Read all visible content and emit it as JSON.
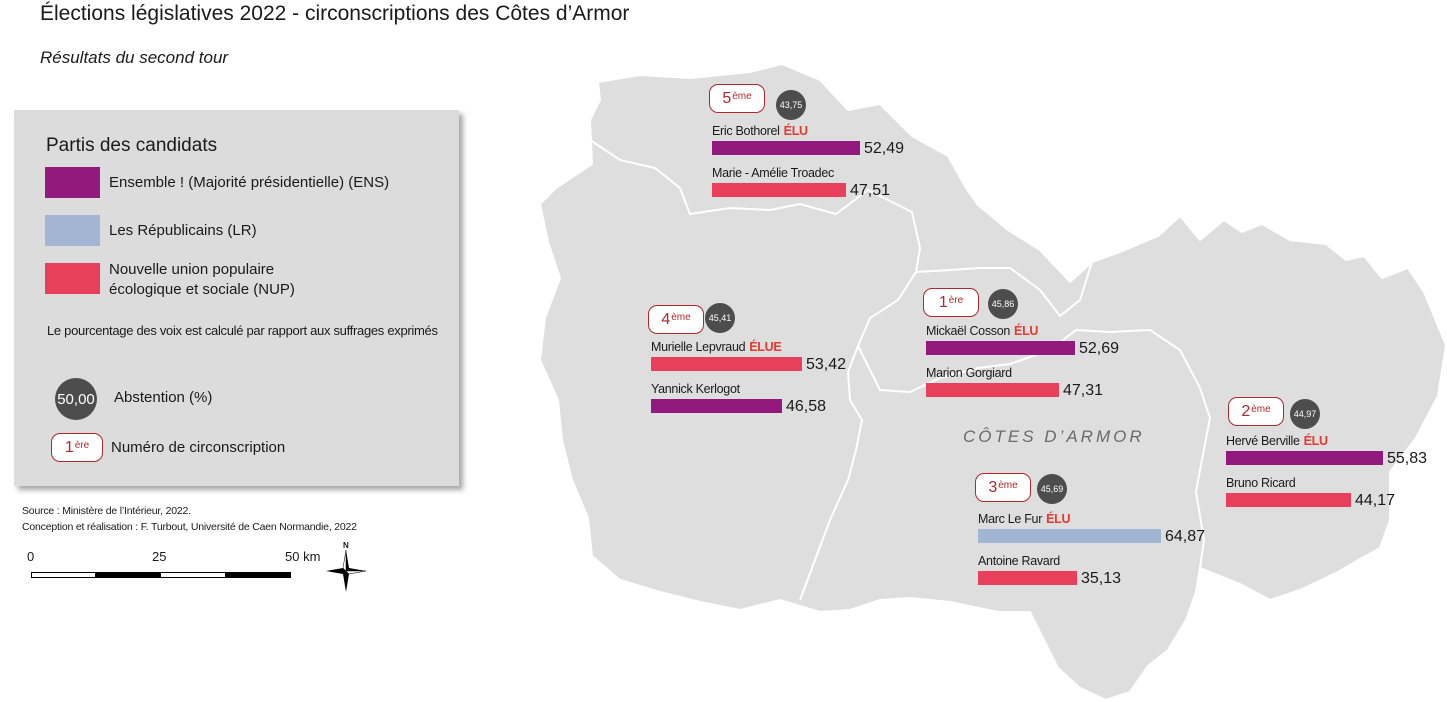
{
  "title": "Élections législatives 2022 - circonscriptions des Côtes d’Armor",
  "subtitle": "Résultats du second tour",
  "colors": {
    "ENS": "#921a7f",
    "LR": "#a2b6d3",
    "NUP": "#e8405a",
    "abstention_bubble": "#4d4d4d",
    "badge_border": "#b0282d",
    "elu_text": "#e23a2c",
    "territory_fill": "#dedede"
  },
  "legend": {
    "heading": "Partis des candidats",
    "parties": [
      {
        "code": "ENS",
        "label": "Ensemble ! (Majorité présidentielle) (ENS)"
      },
      {
        "code": "LR",
        "label": "Les Républicains (LR)"
      },
      {
        "code": "NUP",
        "label_line1": "Nouvelle union populaire",
        "label_line2": "écologique et sociale (NUP)"
      }
    ],
    "note": "Le pourcentage des voix est calculé par rapport aux suffrages exprimés",
    "abstention_example": "50,00",
    "abstention_label": "Abstention (%)",
    "badge_example_num": "1",
    "badge_example_sup": "ère",
    "badge_label": "Numéro de circonscription"
  },
  "credits": {
    "source": "Source : Ministère de l’Intérieur, 2022.",
    "design": "Conception et réalisation : F. Turbout, Université de Caen Normandie, 2022"
  },
  "scale": {
    "labels": [
      "0",
      "25",
      "50 km"
    ],
    "north": "N"
  },
  "map": {
    "department": "CÔTES D’ARMOR",
    "circonscriptions": [
      {
        "num": "5",
        "sup": "ème",
        "abstention": "43,75",
        "abstention_value": 43.75,
        "candidates": [
          {
            "name": "Eric Bothorel",
            "elu": "ÉLU",
            "party": "ENS",
            "value": 52.49,
            "label": "52,49"
          },
          {
            "name": "Marie - Amélie Troadec",
            "elu": "",
            "party": "NUP",
            "value": 47.51,
            "label": "47,51"
          }
        ]
      },
      {
        "num": "4",
        "sup": "ème",
        "abstention": "45,41",
        "abstention_value": 45.41,
        "candidates": [
          {
            "name": "Murielle Lepvraud",
            "elu": "ÉLUE",
            "party": "NUP",
            "value": 53.42,
            "label": "53,42"
          },
          {
            "name": "Yannick Kerlogot",
            "elu": "",
            "party": "ENS",
            "value": 46.58,
            "label": "46,58"
          }
        ]
      },
      {
        "num": "1",
        "sup": "ère",
        "abstention": "45,86",
        "abstention_value": 45.86,
        "candidates": [
          {
            "name": "Mickaël Cosson",
            "elu": "ÉLU",
            "party": "ENS",
            "value": 52.69,
            "label": "52,69"
          },
          {
            "name": "Marion Gorgiard",
            "elu": "",
            "party": "NUP",
            "value": 47.31,
            "label": "47,31"
          }
        ]
      },
      {
        "num": "2",
        "sup": "ème",
        "abstention": "44,97",
        "abstention_value": 44.97,
        "candidates": [
          {
            "name": "Hervé Berville",
            "elu": "ÉLU",
            "party": "ENS",
            "value": 55.83,
            "label": "55,83"
          },
          {
            "name": "Bruno Ricard",
            "elu": "",
            "party": "NUP",
            "value": 44.17,
            "label": "44,17"
          }
        ]
      },
      {
        "num": "3",
        "sup": "ème",
        "abstention": "45,69",
        "abstention_value": 45.69,
        "candidates": [
          {
            "name": "Marc Le Fur",
            "elu": "ÉLU",
            "party": "LR",
            "value": 64.87,
            "label": "64,87"
          },
          {
            "name": "Antoine Ravard",
            "elu": "",
            "party": "NUP",
            "value": 35.13,
            "label": "35,13"
          }
        ]
      }
    ]
  }
}
